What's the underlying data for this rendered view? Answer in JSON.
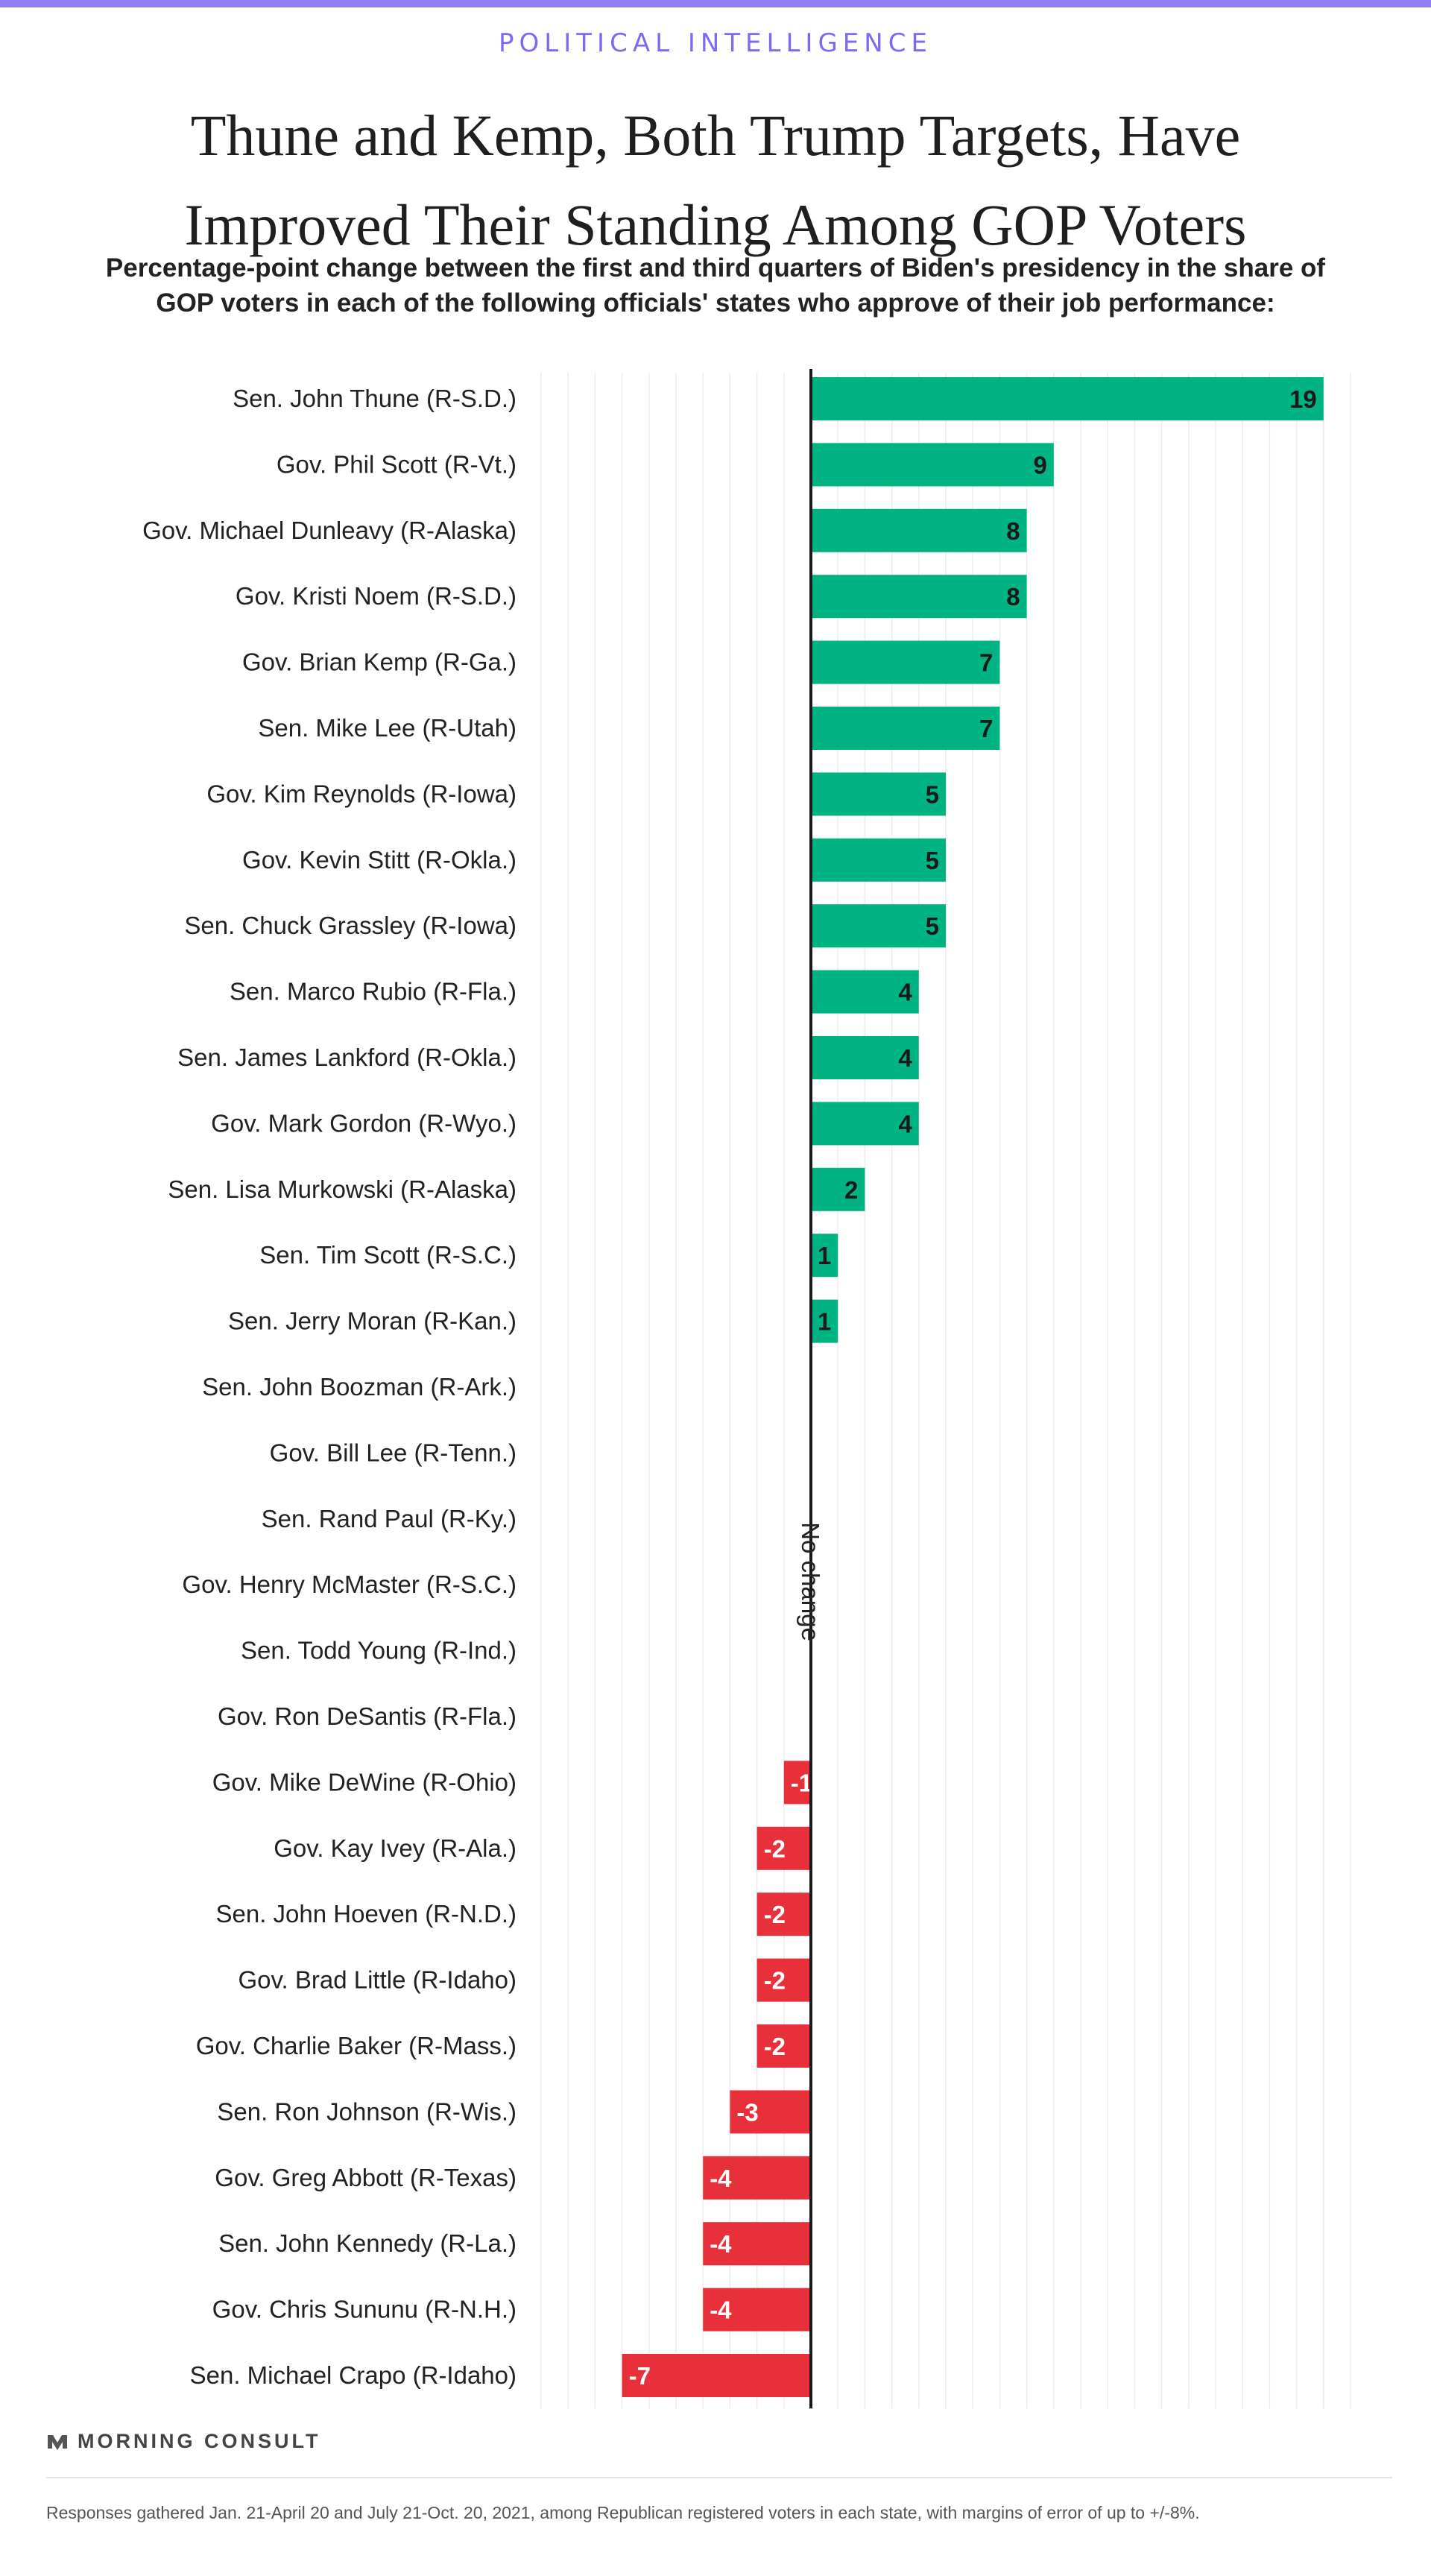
{
  "header": {
    "kicker": "POLITICAL INTELLIGENCE",
    "title": "Thune and Kemp, Both Trump Targets, Have Improved Their Standing Among GOP Voters",
    "subtitle": "Percentage-point change between the first and third quarters of Biden's presidency in the share of GOP voters in each of the following officials' states who approve of their job performance:"
  },
  "colors": {
    "positive": "#00b383",
    "negative": "#e8303a",
    "kicker": "#7d6bef",
    "top_bar": "#8f7ff2"
  },
  "chart_data": {
    "type": "bar",
    "orientation": "horizontal",
    "categories": [
      "Sen. John Thune (R-S.D.)",
      "Gov. Phil Scott (R-Vt.)",
      "Gov. Michael Dunleavy (R-Alaska)",
      "Gov. Kristi Noem (R-S.D.)",
      "Gov. Brian Kemp (R-Ga.)",
      "Sen. Mike Lee (R-Utah)",
      "Gov. Kim Reynolds (R-Iowa)",
      "Gov. Kevin Stitt (R-Okla.)",
      "Sen. Chuck Grassley (R-Iowa)",
      "Sen. Marco Rubio (R-Fla.)",
      "Sen. James Lankford (R-Okla.)",
      "Gov. Mark Gordon (R-Wyo.)",
      "Sen. Lisa Murkowski (R-Alaska)",
      "Sen. Tim Scott (R-S.C.)",
      "Sen. Jerry Moran (R-Kan.)",
      "Sen. John Boozman (R-Ark.)",
      "Gov. Bill Lee (R-Tenn.)",
      "Sen. Rand Paul (R-Ky.)",
      "Gov. Henry McMaster (R-S.C.)",
      "Sen. Todd Young (R-Ind.)",
      "Gov. Ron DeSantis (R-Fla.)",
      "Gov. Mike DeWine (R-Ohio)",
      "Gov. Kay Ivey (R-Ala.)",
      "Sen. John Hoeven (R-N.D.)",
      "Gov. Brad Little (R-Idaho)",
      "Gov. Charlie Baker (R-Mass.)",
      "Sen. Ron Johnson (R-Wis.)",
      "Gov. Greg Abbott (R-Texas)",
      "Sen. John Kennedy (R-La.)",
      "Gov. Chris Sununu (R-N.H.)",
      "Sen. Michael Crapo (R-Idaho)"
    ],
    "values": [
      19,
      9,
      8,
      8,
      7,
      7,
      5,
      5,
      5,
      4,
      4,
      4,
      2,
      1,
      1,
      0,
      0,
      0,
      0,
      0,
      0,
      -1,
      -2,
      -2,
      -2,
      -2,
      -3,
      -4,
      -4,
      -4,
      -7
    ],
    "zero_annotation": "No change",
    "xlim": [
      -10,
      20
    ],
    "grid": true
  },
  "footer": {
    "logo_text": "MORNING CONSULT",
    "logo_mark": "M",
    "footnote": "Responses gathered Jan. 21-April 20 and July 21-Oct. 20, 2021, among Republican registered voters in each state, with margins of error of up to +/-8%."
  }
}
